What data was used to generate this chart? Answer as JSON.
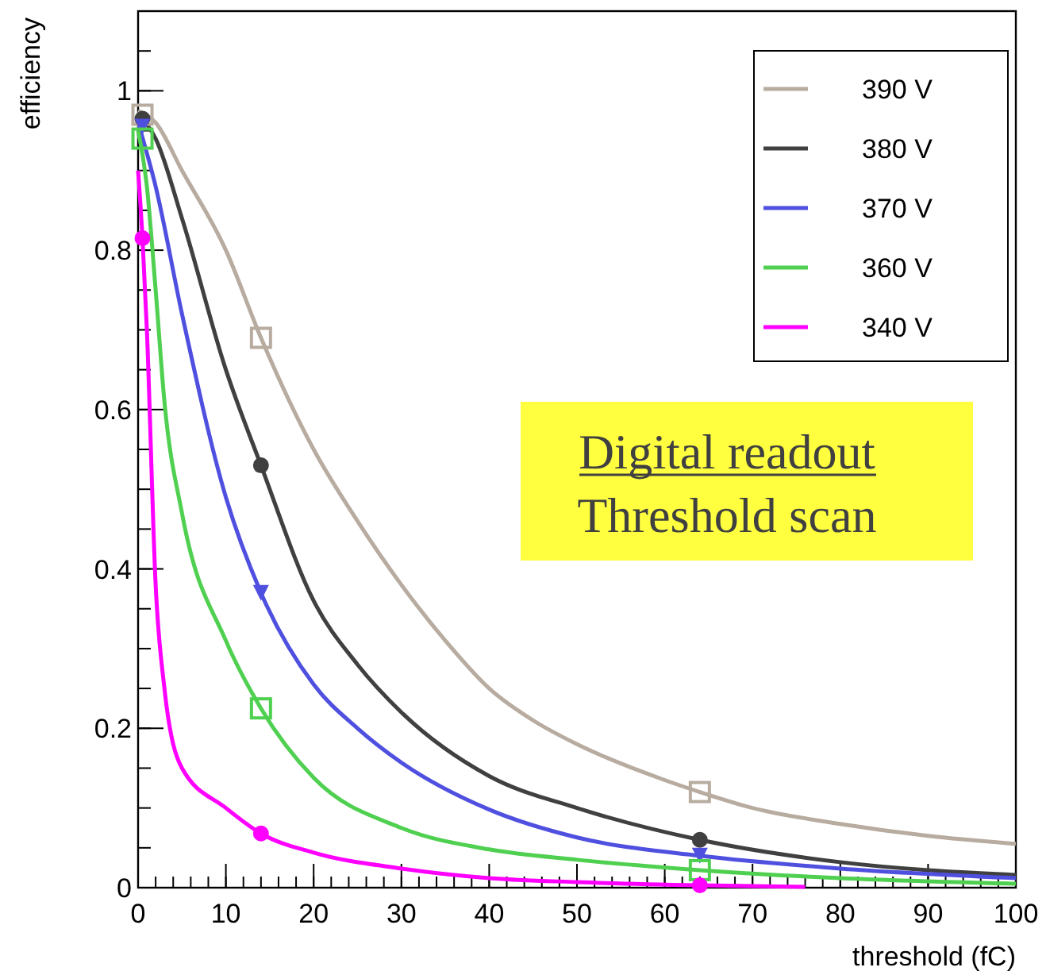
{
  "chart_data": {
    "type": "line",
    "xlabel": "threshold (fC)",
    "ylabel": "efficiency",
    "xlim": [
      0,
      100
    ],
    "xticks": [
      0,
      10,
      20,
      30,
      40,
      50,
      60,
      70,
      80,
      90,
      100
    ],
    "ylim": [
      0,
      1.1
    ],
    "yticks": [
      0,
      0.2,
      0.4,
      0.6,
      0.8,
      1
    ],
    "grid": false,
    "legend": "top right",
    "annotations": [
      "Digital readout",
      "Threshold scan"
    ],
    "series": [
      {
        "name": "390 V",
        "color": "#b8aca0",
        "marker": "none",
        "x": [
          0,
          2,
          5,
          10,
          14,
          20,
          25,
          30,
          35,
          40,
          45,
          50,
          60,
          64,
          70,
          80,
          90,
          100
        ],
        "values": [
          0.975,
          0.96,
          0.9,
          0.8,
          0.69,
          0.55,
          0.46,
          0.38,
          0.31,
          0.25,
          0.21,
          0.18,
          0.135,
          0.12,
          0.1,
          0.08,
          0.065,
          0.055
        ]
      },
      {
        "name": "380 V",
        "color": "#404040",
        "marker": "none",
        "x": [
          0,
          2,
          5,
          10,
          14,
          20,
          25,
          30,
          40,
          50,
          64,
          80,
          100
        ],
        "values": [
          0.97,
          0.94,
          0.84,
          0.65,
          0.53,
          0.36,
          0.28,
          0.22,
          0.14,
          0.1,
          0.06,
          0.032,
          0.016
        ]
      },
      {
        "name": "370 V",
        "color": "#5050e0",
        "marker": "none",
        "x": [
          0,
          2,
          5,
          10,
          14,
          20,
          25,
          30,
          40,
          50,
          64,
          80,
          100
        ],
        "values": [
          0.96,
          0.88,
          0.72,
          0.49,
          0.37,
          0.255,
          0.2,
          0.157,
          0.098,
          0.063,
          0.04,
          0.024,
          0.012
        ]
      },
      {
        "name": "360 V",
        "color": "#50d050",
        "marker": "none",
        "x": [
          0,
          1,
          2,
          3,
          5,
          10,
          14,
          20,
          30,
          40,
          50,
          64,
          80,
          100
        ],
        "values": [
          0.95,
          0.88,
          0.75,
          0.61,
          0.47,
          0.31,
          0.225,
          0.138,
          0.075,
          0.048,
          0.035,
          0.022,
          0.012,
          0.005
        ]
      },
      {
        "name": "340 V",
        "color": "#ff00ff",
        "marker": "none",
        "x": [
          0,
          0.5,
          1,
          2,
          3,
          5,
          10,
          14,
          20,
          30,
          40,
          50,
          64,
          76
        ],
        "values": [
          0.9,
          0.815,
          0.7,
          0.38,
          0.25,
          0.15,
          0.1,
          0.068,
          0.044,
          0.024,
          0.012,
          0.007,
          0.003,
          0.001
        ]
      },
      {
        "type": "scatter",
        "color": "#b8aca0",
        "marker": "square",
        "x": [
          0.5,
          14,
          64
        ],
        "values": [
          0.97,
          0.69,
          0.12
        ]
      },
      {
        "type": "scatter",
        "color": "#404040",
        "marker": "circle",
        "x": [
          0.5,
          14,
          64
        ],
        "values": [
          0.965,
          0.53,
          0.06
        ]
      },
      {
        "type": "scatter",
        "color": "#5050e0",
        "marker": "triangle",
        "x": [
          0.5,
          14,
          64
        ],
        "values": [
          0.955,
          0.37,
          0.04
        ]
      },
      {
        "type": "scatter",
        "color": "#50d050",
        "marker": "square",
        "x": [
          0.5,
          14,
          64
        ],
        "values": [
          0.94,
          0.225,
          0.022
        ]
      },
      {
        "type": "scatter",
        "color": "#ff00ff",
        "marker": "circle",
        "x": [
          0.5,
          14,
          64
        ],
        "values": [
          0.815,
          0.068,
          0.003
        ]
      }
    ]
  }
}
